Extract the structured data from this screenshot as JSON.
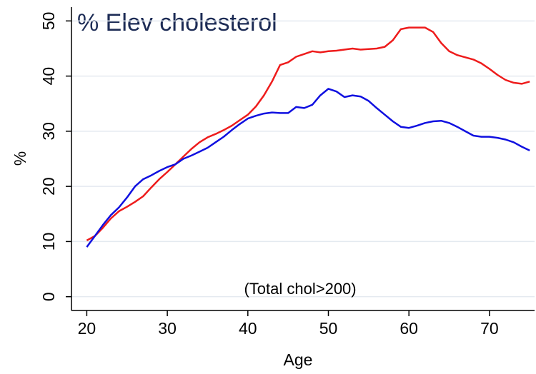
{
  "chart_data": {
    "type": "line",
    "title": "% Elev cholesterol",
    "annotation": "(Total chol>200)",
    "x_label": "Age",
    "y_label": "%",
    "x": [
      20,
      21,
      22,
      23,
      24,
      25,
      26,
      27,
      28,
      29,
      30,
      31,
      32,
      33,
      34,
      35,
      36,
      37,
      38,
      39,
      40,
      41,
      42,
      43,
      44,
      45,
      46,
      47,
      48,
      49,
      50,
      51,
      52,
      53,
      54,
      55,
      56,
      57,
      58,
      59,
      60,
      61,
      62,
      63,
      64,
      65,
      66,
      67,
      68,
      69,
      70,
      71,
      72,
      73,
      74,
      75
    ],
    "series": [
      {
        "color": "#ee1c1c",
        "values": [
          10.2,
          11,
          12.5,
          14.2,
          15.5,
          16.3,
          17.2,
          18.2,
          19.8,
          21.3,
          22.6,
          24,
          25.4,
          26.8,
          28,
          28.9,
          29.5,
          30.2,
          31,
          32,
          33,
          34.5,
          36.5,
          39,
          42,
          42.5,
          43.5,
          44,
          44.5,
          44.3,
          44.5,
          44.6,
          44.8,
          45,
          44.8,
          44.9,
          45,
          45.3,
          46.5,
          48.5,
          48.8,
          48.8,
          48.8,
          48,
          46,
          44.5,
          43.8,
          43.4,
          43,
          42.3,
          41.3,
          40.2,
          39.3,
          38.8,
          38.6,
          39
        ]
      },
      {
        "color": "#1010e0",
        "values": [
          9,
          11,
          13,
          14.8,
          16.2,
          18,
          20,
          21.3,
          22,
          22.8,
          23.5,
          24,
          25,
          25.6,
          26.3,
          27,
          28,
          29,
          30.2,
          31.3,
          32.3,
          32.8,
          33.2,
          33.4,
          33.3,
          33.3,
          34.4,
          34.2,
          34.8,
          36.5,
          37.7,
          37.2,
          36.2,
          36.5,
          36.3,
          35.5,
          34.2,
          33,
          31.8,
          30.8,
          30.6,
          31,
          31.5,
          31.8,
          31.9,
          31.5,
          30.8,
          30,
          29.2,
          29,
          29,
          28.8,
          28.5,
          28,
          27.2,
          26.5
        ]
      }
    ],
    "xlim": [
      18.1,
      75.6
    ],
    "xticks": [
      20,
      30,
      40,
      50,
      60,
      70
    ],
    "ylim": [
      -2.5,
      52.5
    ],
    "yticks": [
      0,
      10,
      20,
      30,
      40,
      50
    ],
    "grid": true
  }
}
